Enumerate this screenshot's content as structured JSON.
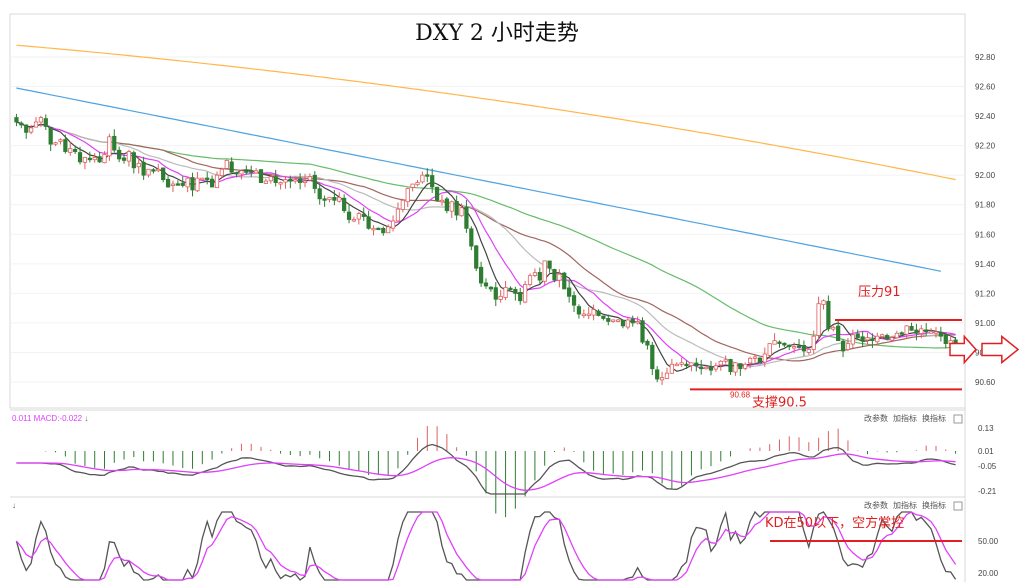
{
  "chart_data": {
    "type": "candlestick",
    "title": "DXY 2 小时走势",
    "colors": {
      "up": "#e06060",
      "down": "#2e7d32",
      "ma_black": "#444444",
      "ma_pink": "#e040fb",
      "ma_grey": "#bbbbbb",
      "ma_brown": "#a1665e",
      "ma_green": "#66bb6a",
      "ma_blue": "#4fa3e0",
      "ma_orange": "#ffb74d",
      "annotation": "#e02020"
    },
    "price_panel": {
      "ylim": [
        90.5,
        92.96
      ],
      "yticks": [
        "92.80",
        "92.60",
        "92.40",
        "92.20",
        "92.00",
        "91.80",
        "91.60",
        "91.40",
        "91.20",
        "91.00",
        "90.80",
        "90.60"
      ],
      "candles_close": [
        92.36,
        92.34,
        92.29,
        92.32,
        92.36,
        92.39,
        92.33,
        92.21,
        92.22,
        92.24,
        92.16,
        92.18,
        92.16,
        92.09,
        92.12,
        92.11,
        92.12,
        92.09,
        92.14,
        92.26,
        92.17,
        92.11,
        92.1,
        92.16,
        92.05,
        92.08,
        92.0,
        92.04,
        92.03,
        92.04,
        91.97,
        91.92,
        91.94,
        91.94,
        91.93,
        91.98,
        91.9,
        91.98,
        91.98,
        91.98,
        91.92,
        92.0,
        92.04,
        92.1,
        92.02,
        92.01,
        92.03,
        92.02,
        92.02,
        92.03,
        91.95,
        91.96,
        91.99,
        91.95,
        91.95,
        91.97,
        91.96,
        91.97,
        91.95,
        91.96,
        91.99,
        91.91,
        91.84,
        91.83,
        91.85,
        91.83,
        91.85,
        91.76,
        91.7,
        91.7,
        91.74,
        91.72,
        91.64,
        91.64,
        91.64,
        91.61,
        91.65,
        91.69,
        91.77,
        91.83,
        91.91,
        91.94,
        91.95,
        92.0,
        92.0,
        91.92,
        91.83,
        91.83,
        91.76,
        91.82,
        91.73,
        91.78,
        91.64,
        91.52,
        91.37,
        91.27,
        91.25,
        91.23,
        91.16,
        91.18,
        91.24,
        91.23,
        91.2,
        91.15,
        91.26,
        91.32,
        91.34,
        91.29,
        91.42,
        91.37,
        91.29,
        91.33,
        91.23,
        91.18,
        91.12,
        91.06,
        91.06,
        91.06,
        91.09,
        91.05,
        91.03,
        91.01,
        91.02,
        91.02,
        90.98,
        91.02,
        91.0,
        91.01,
        90.87,
        90.85,
        90.69,
        90.62,
        90.63,
        90.66,
        90.72,
        90.72,
        90.73,
        90.71,
        90.73,
        90.71,
        90.69,
        90.7,
        90.68,
        90.71,
        90.74,
        90.75,
        90.67,
        90.73,
        90.69,
        90.72,
        90.76,
        90.77,
        90.73,
        90.79,
        90.86,
        90.88,
        90.86,
        90.85,
        90.84,
        90.84,
        90.84,
        90.81,
        90.82,
        90.91,
        91.13,
        91.15,
        90.96,
        90.97,
        90.88,
        90.81,
        90.86,
        90.92,
        90.9,
        90.88,
        90.9,
        90.88,
        90.91,
        90.92,
        90.89,
        90.9,
        90.93,
        90.93,
        90.98,
        90.95,
        90.93,
        90.96,
        90.94,
        90.94,
        90.94,
        90.91,
        90.86,
        90.88,
        90.85
      ],
      "moving_averages": [
        {
          "color_key": "ma_orange",
          "start": 92.88,
          "end": 91.97
        },
        {
          "color_key": "ma_blue",
          "start": 92.59,
          "end": 91.33
        },
        {
          "color_key": "ma_green",
          "start": 92.38,
          "end": 90.92
        },
        {
          "color_key": "ma_brown",
          "start": 92.4,
          "end": 90.87
        },
        {
          "color_key": "ma_grey",
          "start": 92.36,
          "end": 90.89
        },
        {
          "color_key": "ma_pink",
          "start": 92.4,
          "end": 90.88
        },
        {
          "color_key": "ma_black",
          "start": 92.38,
          "end": 90.88
        }
      ],
      "annotations": {
        "resistance_label": "压力91",
        "resistance_value": 91.02,
        "support_label": "支撑90.5",
        "support_value": 90.55,
        "low_label": "90.68",
        "arrow_value": 90.82
      }
    },
    "macd_panel": {
      "header": "0.011 MACD:-0.022",
      "yticks": [
        "0.13",
        "0.01",
        "-0.05",
        "-0.21"
      ],
      "buttons": [
        "改参数",
        "加指标",
        "换指标"
      ]
    },
    "kd_panel": {
      "yticks": [
        "50.00",
        "20.00"
      ],
      "buttons": [
        "改参数",
        "加指标",
        "换指标"
      ],
      "annotation": "KD在50以下，空方掌控"
    }
  }
}
